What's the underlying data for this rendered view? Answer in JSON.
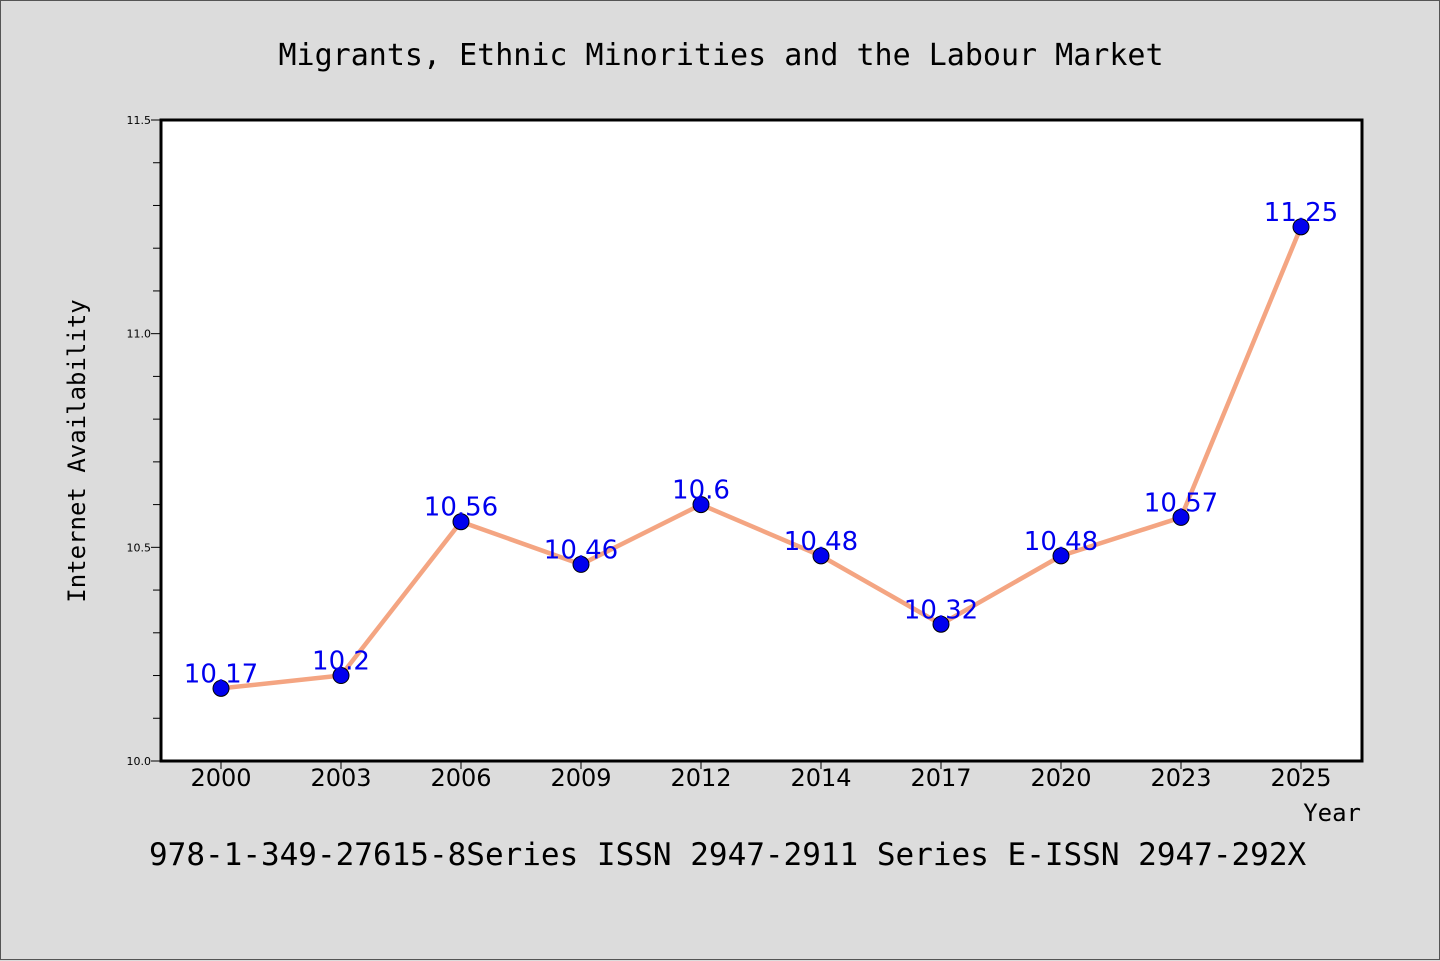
{
  "chart_data": {
    "type": "line",
    "title": "Migrants, Ethnic Minorities and the Labour Market",
    "xlabel": "Year",
    "ylabel": "Internet Availability",
    "categories": [
      "2000",
      "2003",
      "2006",
      "2009",
      "2012",
      "2014",
      "2017",
      "2020",
      "2023",
      "2025"
    ],
    "series": [
      {
        "values": [
          10.17,
          10.2,
          10.56,
          10.46,
          10.6,
          10.48,
          10.32,
          10.48,
          10.57,
          11.25
        ]
      }
    ],
    "data_labels": [
      "10.17",
      "10.2",
      "10.56",
      "10.46",
      "10.6",
      "10.48",
      "10.32",
      "10.48",
      "10.57",
      "11.25"
    ],
    "yticks": [
      "10.0",
      "10.5",
      "11.0",
      "11.5"
    ],
    "ylim": [
      10.0,
      11.5
    ],
    "grid": false,
    "legend": "none",
    "colors": {
      "line": "#f4a582",
      "marker": "#0000ee",
      "label": "#0000ee",
      "background": "#dcdcdc",
      "plot_bg": "#ffffff"
    }
  },
  "footer": "978-1-349-27615-8Series ISSN 2947-2911 Series E-ISSN 2947-292X"
}
